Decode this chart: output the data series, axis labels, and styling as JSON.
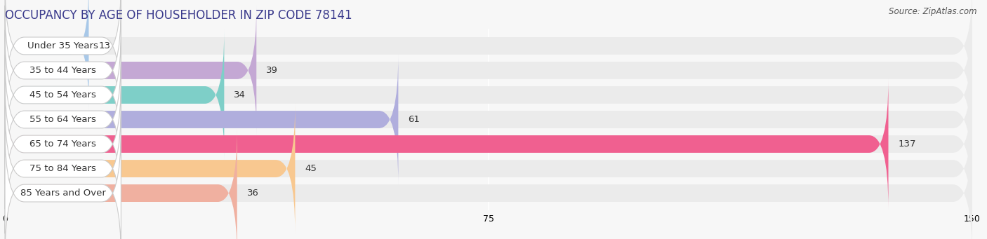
{
  "title": "OCCUPANCY BY AGE OF HOUSEHOLDER IN ZIP CODE 78141",
  "source": "Source: ZipAtlas.com",
  "categories": [
    "Under 35 Years",
    "35 to 44 Years",
    "45 to 54 Years",
    "55 to 64 Years",
    "65 to 74 Years",
    "75 to 84 Years",
    "85 Years and Over"
  ],
  "values": [
    13,
    39,
    34,
    61,
    137,
    45,
    36
  ],
  "bar_colors": [
    "#a8c8e8",
    "#c4a8d4",
    "#7ecfc8",
    "#b0aedd",
    "#f06090",
    "#f8c890",
    "#f0b0a0"
  ],
  "xlim_max": 150,
  "xticks": [
    0,
    75,
    150
  ],
  "bg_color": "#f7f7f7",
  "row_bg_color": "#ebebeb",
  "title_fontsize": 12,
  "label_fontsize": 9.5,
  "value_fontsize": 9.5,
  "source_fontsize": 8.5,
  "title_color": "#3a3a8c",
  "source_color": "#555555",
  "label_color": "#333333",
  "value_color": "#333333"
}
